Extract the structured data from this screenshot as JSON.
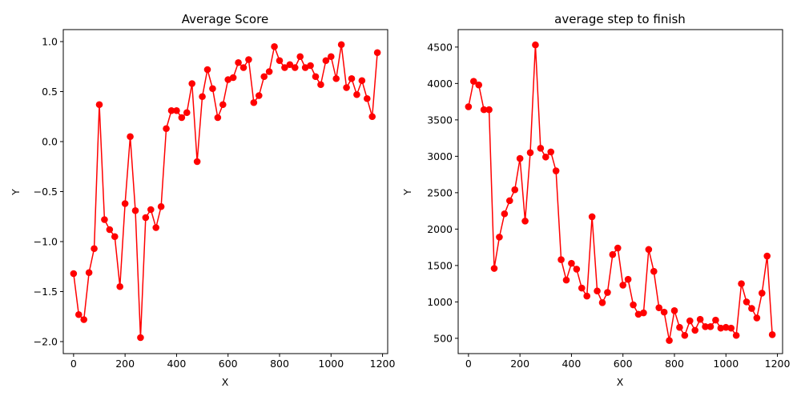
{
  "colors": {
    "series": "#ff0000",
    "axes": "#000000",
    "background": "#ffffff"
  },
  "chart_data": [
    {
      "type": "line",
      "title": "Average Score",
      "xlabel": "X",
      "ylabel": "Y",
      "xlim": [
        -40,
        1220
      ],
      "ylim": [
        -2.12,
        1.12
      ],
      "grid": false,
      "xticks": [
        0,
        200,
        400,
        600,
        800,
        1000,
        1200
      ],
      "xtick_labels": [
        "0",
        "200",
        "400",
        "600",
        "800",
        "1000",
        "1200"
      ],
      "yticks": [
        -2.0,
        -1.5,
        -1.0,
        -0.5,
        0.0,
        0.5,
        1.0
      ],
      "ytick_labels": [
        "−2.0",
        "−1.5",
        "−1.0",
        "−0.5",
        "0.0",
        "0.5",
        "1.0"
      ],
      "series": [
        {
          "marker": "circle",
          "x": [
            0,
            20,
            40,
            60,
            80,
            100,
            120,
            140,
            160,
            180,
            200,
            220,
            240,
            260,
            280,
            300,
            320,
            340,
            360,
            380,
            400,
            420,
            440,
            460,
            480,
            500,
            520,
            540,
            560,
            580,
            600,
            620,
            640,
            660,
            680,
            700,
            720,
            740,
            760,
            780,
            800,
            820,
            840,
            860,
            880,
            900,
            920,
            940,
            960,
            980,
            1000,
            1020,
            1040,
            1060,
            1080,
            1100,
            1120,
            1140,
            1160,
            1180
          ],
          "y": [
            -1.32,
            -1.73,
            -1.78,
            -1.31,
            -1.07,
            0.37,
            -0.78,
            -0.88,
            -0.95,
            -1.45,
            -0.62,
            0.05,
            -0.69,
            -1.96,
            -0.76,
            -0.68,
            -0.86,
            -0.65,
            0.13,
            0.31,
            0.31,
            0.24,
            0.29,
            0.58,
            -0.2,
            0.45,
            0.72,
            0.53,
            0.24,
            0.37,
            0.62,
            0.64,
            0.79,
            0.74,
            0.82,
            0.39,
            0.46,
            0.65,
            0.7,
            0.95,
            0.81,
            0.74,
            0.77,
            0.74,
            0.85,
            0.74,
            0.76,
            0.65,
            0.57,
            0.81,
            0.85,
            0.63,
            0.97,
            0.54,
            0.63,
            0.47,
            0.61,
            0.43,
            0.25,
            0.89
          ]
        }
      ]
    },
    {
      "type": "line",
      "title": "average step to finish",
      "xlabel": "X",
      "ylabel": "Y",
      "xlim": [
        -40,
        1220
      ],
      "ylim": [
        290,
        4740
      ],
      "grid": false,
      "xticks": [
        0,
        200,
        400,
        600,
        800,
        1000,
        1200
      ],
      "xtick_labels": [
        "0",
        "200",
        "400",
        "600",
        "800",
        "1000",
        "1200"
      ],
      "yticks": [
        500,
        1000,
        1500,
        2000,
        2500,
        3000,
        3500,
        4000,
        4500
      ],
      "ytick_labels": [
        "500",
        "1000",
        "1500",
        "2000",
        "2500",
        "3000",
        "3500",
        "4000",
        "4500"
      ],
      "series": [
        {
          "marker": "circle",
          "x": [
            0,
            20,
            40,
            60,
            80,
            100,
            120,
            140,
            160,
            180,
            200,
            220,
            240,
            260,
            280,
            300,
            320,
            340,
            360,
            380,
            400,
            420,
            440,
            460,
            480,
            500,
            520,
            540,
            560,
            580,
            600,
            620,
            640,
            660,
            680,
            700,
            720,
            740,
            760,
            780,
            800,
            820,
            840,
            860,
            880,
            900,
            920,
            940,
            960,
            980,
            1000,
            1020,
            1040,
            1060,
            1080,
            1100,
            1120,
            1140,
            1160,
            1180
          ],
          "y": [
            3680,
            4030,
            3980,
            3640,
            3640,
            1460,
            1890,
            2210,
            2390,
            2540,
            2970,
            2110,
            3050,
            4530,
            3110,
            2990,
            3060,
            2800,
            1580,
            1300,
            1530,
            1450,
            1190,
            1080,
            2170,
            1150,
            990,
            1130,
            1650,
            1740,
            1230,
            1310,
            960,
            830,
            850,
            1720,
            1420,
            920,
            860,
            470,
            880,
            650,
            540,
            740,
            610,
            760,
            660,
            660,
            750,
            640,
            650,
            640,
            540,
            1250,
            1000,
            910,
            780,
            1120,
            1630,
            550
          ]
        }
      ]
    }
  ]
}
